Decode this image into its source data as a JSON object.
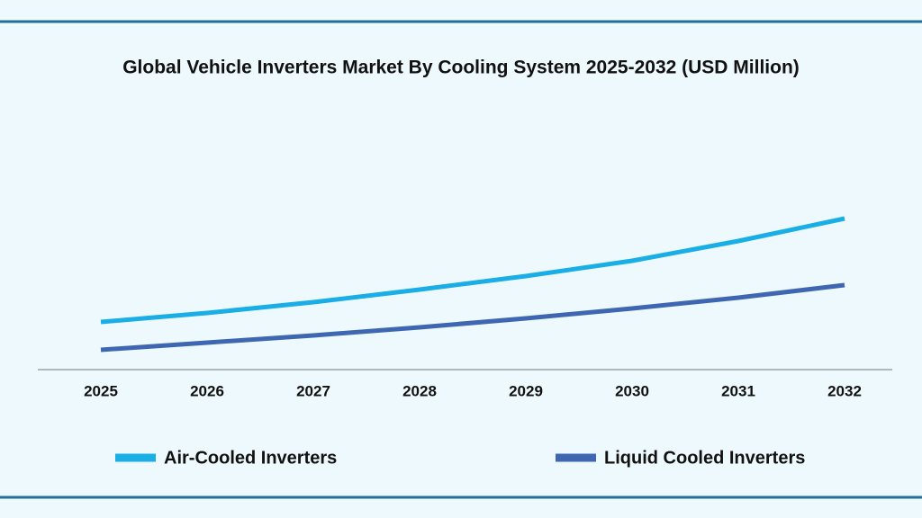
{
  "chart_data": {
    "type": "line",
    "title": "Global Vehicle Inverters Market By Cooling System 2025-2032 (USD Million)",
    "categories": [
      "2025",
      "2026",
      "2027",
      "2028",
      "2029",
      "2030",
      "2031",
      "2032"
    ],
    "series": [
      {
        "name": "Air-Cooled Inverters",
        "color": "#1aaee6",
        "values": [
          53,
          63,
          75,
          89,
          104,
          121,
          143,
          168
        ]
      },
      {
        "name": "Liquid Cooled Inverters",
        "color": "#3f67b1",
        "values": [
          22,
          30,
          38,
          47,
          57,
          68,
          80,
          94
        ]
      }
    ],
    "ylim": [
      0,
      200
    ]
  }
}
